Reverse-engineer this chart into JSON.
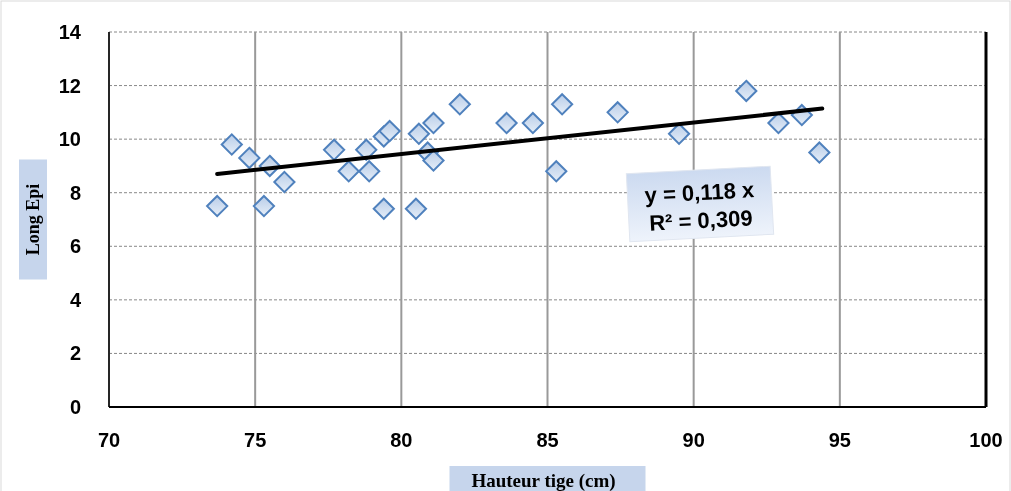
{
  "chart_data": {
    "type": "scatter",
    "xlabel": "Hauteur tige (cm)",
    "ylabel": "Long Epi",
    "xlim": [
      70,
      100
    ],
    "xticks": [
      70,
      75,
      80,
      85,
      90,
      95,
      100
    ],
    "ylim": [
      0,
      14
    ],
    "yticks": [
      0,
      2,
      4,
      6,
      8,
      10,
      12,
      14
    ],
    "grid": true,
    "annotations": [
      "y = 0,118  x\nR² = 0,309"
    ],
    "series": [
      {
        "marker": "diamond",
        "color": "#4f81bd",
        "x": [
          73.7,
          74.2,
          74.8,
          75.5,
          75.3,
          76.0,
          77.7,
          78.2,
          78.8,
          78.9,
          79.4,
          79.4,
          79.6,
          80.5,
          80.6,
          80.9,
          81.1,
          81.1,
          82.0,
          83.6,
          84.5,
          85.3,
          85.5,
          87.4,
          89.5,
          91.8,
          92.9,
          93.7,
          94.3
        ],
        "values": [
          7.5,
          9.8,
          9.3,
          9.0,
          7.5,
          8.4,
          9.6,
          8.8,
          9.6,
          8.8,
          7.4,
          10.1,
          10.3,
          7.4,
          10.2,
          9.5,
          9.2,
          10.6,
          11.3,
          10.6,
          10.6,
          8.8,
          11.3,
          11.0,
          10.2,
          11.8,
          10.6,
          10.9,
          9.5
        ]
      },
      {
        "type": "line",
        "color": "#000000",
        "x": [
          73.7,
          94.4
        ],
        "values": [
          8.7,
          11.14
        ]
      }
    ]
  }
}
